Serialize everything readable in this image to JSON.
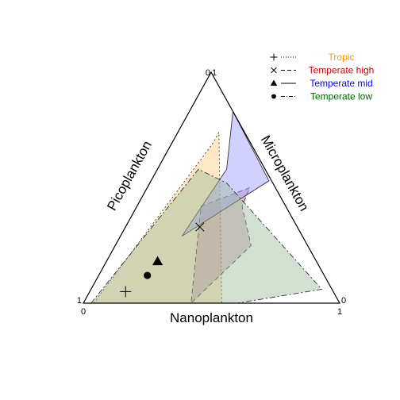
{
  "chart_data": {
    "type": "ternary",
    "title": "",
    "axes": {
      "bottom": {
        "label": "Nanoplankton",
        "min_label": "0",
        "max_label": "1"
      },
      "left": {
        "label": "Picoplankton",
        "max_label": "1"
      },
      "right": {
        "label": "Microplankton",
        "min_label": "0"
      },
      "apex_labels": [
        "0",
        "1"
      ]
    },
    "grid": false,
    "legend_position": "top-right",
    "series": [
      {
        "name": "Tropic",
        "color": "#ff9900",
        "fill": "#ffcc80",
        "line": "dotted",
        "marker": "plus",
        "centroid": {
          "nano": 0.14,
          "micro": 0.05,
          "pico": 0.81
        },
        "hull": [
          {
            "nano": 0.04,
            "micro": 0.0,
            "pico": 0.96
          },
          {
            "nano": 0.16,
            "micro": 0.69,
            "pico": 0.15
          },
          {
            "nano": 0.16,
            "micro": 0.74,
            "pico": 0.1
          },
          {
            "nano": 0.54,
            "micro": 0.0,
            "pico": 0.46
          }
        ]
      },
      {
        "name": "Temperate high",
        "color": "#cc0000",
        "fill": "#c080a0",
        "line": "dashed",
        "marker": "cross",
        "centroid": {
          "nano": 0.29,
          "micro": 0.33,
          "pico": 0.38
        },
        "hull": [
          {
            "nano": 0.4,
            "micro": 0.5,
            "pico": 0.1
          },
          {
            "nano": 0.25,
            "micro": 0.42,
            "pico": 0.33
          },
          {
            "nano": 0.42,
            "micro": 0.0,
            "pico": 0.58
          },
          {
            "nano": 0.53,
            "micro": 0.25,
            "pico": 0.22
          },
          {
            "nano": 0.41,
            "micro": 0.42,
            "pico": 0.17
          }
        ]
      },
      {
        "name": "Temperate mid",
        "color": "#0000ff",
        "fill": "#9999ff",
        "line": "solid",
        "marker": "triangle",
        "centroid": {
          "nano": 0.2,
          "micro": 0.18,
          "pico": 0.62
        },
        "hull": [
          {
            "nano": 0.17,
            "micro": 0.83,
            "pico": 0.0
          },
          {
            "nano": 0.27,
            "micro": 0.58,
            "pico": 0.15
          },
          {
            "nano": 0.24,
            "micro": 0.29,
            "pico": 0.47
          },
          {
            "nano": 0.46,
            "micro": 0.53,
            "pico": 0.01
          }
        ]
      },
      {
        "name": "Temperate low",
        "color": "#006600",
        "fill": "#99bb99",
        "line": "dashdot",
        "marker": "circle",
        "centroid": {
          "nano": 0.19,
          "micro": 0.12,
          "pico": 0.69
        },
        "hull": [
          {
            "nano": 0.03,
            "micro": 0.0,
            "pico": 0.97
          },
          {
            "nano": 0.16,
            "micro": 0.58,
            "pico": 0.26
          },
          {
            "nano": 0.3,
            "micro": 0.52,
            "pico": 0.18
          },
          {
            "nano": 0.9,
            "micro": 0.06,
            "pico": 0.04
          },
          {
            "nano": 0.6,
            "micro": 0.0,
            "pico": 0.4
          },
          {
            "nano": 0.15,
            "micro": 0.0,
            "pico": 0.85
          }
        ]
      }
    ]
  }
}
